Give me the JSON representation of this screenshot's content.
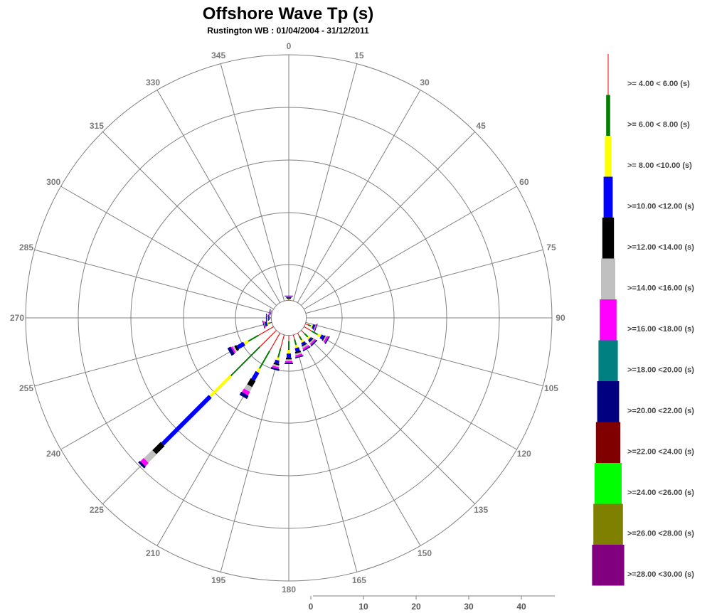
{
  "chart_data": {
    "type": "rose",
    "title": "Offshore Wave Tp (s)",
    "subtitle": "Rustington WB : 01/04/2004 - 31/12/2011",
    "direction_labels": [
      "0",
      "15",
      "30",
      "45",
      "60",
      "75",
      "90",
      "105",
      "120",
      "135",
      "150",
      "165",
      "180",
      "195",
      "210",
      "225",
      "240",
      "255",
      "270",
      "285",
      "300",
      "315",
      "330",
      "345"
    ],
    "radial_ticks": [
      "0",
      "10",
      "20",
      "30",
      "40"
    ],
    "radial_max": 45,
    "inner_radius_units": 3,
    "bins": [
      {
        "name": ">= 4.00 < 6.00 (s)",
        "color": "#ff0000"
      },
      {
        "name": ">= 6.00 < 8.00 (s)",
        "color": "#008000"
      },
      {
        "name": ">= 8.00 <10.00 (s)",
        "color": "#ffff00"
      },
      {
        "name": ">=10.00 <12.00 (s)",
        "color": "#0000ff"
      },
      {
        "name": ">=12.00 <14.00 (s)",
        "color": "#000000"
      },
      {
        "name": ">=14.00 <16.00 (s)",
        "color": "#c0c0c0"
      },
      {
        "name": ">=16.00 <18.00 (s)",
        "color": "#ff00ff"
      },
      {
        "name": ">=18.00 <20.00 (s)",
        "color": "#008080"
      },
      {
        "name": ">=20.00 <22.00 (s)",
        "color": "#000080"
      },
      {
        "name": ">=22.00 <24.00 (s)",
        "color": "#800000"
      },
      {
        "name": ">=24.00 <26.00 (s)",
        "color": "#00ff00"
      },
      {
        "name": ">=26.00 <28.00 (s)",
        "color": "#808000"
      },
      {
        "name": ">=28.00 <30.00 (s)",
        "color": "#800080"
      }
    ],
    "sectors": [
      {
        "dir": 0,
        "values": [
          0.05,
          0.1,
          0.1,
          0.2,
          0.1,
          0.1,
          0.05,
          0,
          0.1
        ]
      },
      {
        "dir": 110,
        "values": [
          0.5,
          0.5,
          0.3,
          0.3,
          0.1,
          0.1,
          0.1,
          0,
          0.1
        ]
      },
      {
        "dir": 120,
        "values": [
          1.5,
          1.2,
          0.6,
          0.5,
          0.2,
          0.2,
          0.3,
          0,
          0.2
        ]
      },
      {
        "dir": 135,
        "values": [
          0.8,
          0.8,
          0.4,
          0.3,
          0.2,
          0.2,
          0.3,
          0,
          0.2
        ]
      },
      {
        "dir": 150,
        "values": [
          0.6,
          0.8,
          0.4,
          0.4,
          0.2,
          0.3,
          0.3,
          0,
          0.2
        ]
      },
      {
        "dir": 165,
        "values": [
          0.8,
          1.0,
          0.5,
          0.6,
          0.3,
          0.3,
          0.3,
          0,
          0.2
        ]
      },
      {
        "dir": 180,
        "values": [
          1.0,
          1.5,
          0.6,
          0.7,
          0.3,
          0.3,
          0.3,
          0,
          0.2
        ]
      },
      {
        "dir": 195,
        "values": [
          2.5,
          1.5,
          0.5,
          0.5,
          0.3,
          0.3,
          0.3,
          0,
          0.3
        ]
      },
      {
        "dir": 210,
        "values": [
          3.5,
          3.5,
          0.7,
          1.5,
          1.2,
          0.9,
          0.7,
          0,
          0.6
        ]
      },
      {
        "dir": 225,
        "values": [
          4.0,
          7.0,
          5.0,
          11.5,
          2.0,
          2.0,
          0.8,
          0,
          0.4
        ]
      },
      {
        "dir": 240,
        "values": [
          3.0,
          2.0,
          0.8,
          1.3,
          0.4,
          0.3,
          0.3,
          0,
          0.6
        ]
      },
      {
        "dir": 255,
        "values": [
          0.3,
          0.3,
          0.2,
          0.3,
          0.1,
          0.1,
          0.1,
          0,
          0.1
        ]
      },
      {
        "dir": 270,
        "values": [
          0.1,
          0.1,
          0.1,
          0.1,
          0.1,
          0.2,
          0.1,
          0,
          0.1
        ]
      },
      {
        "dir": 285,
        "values": [
          0.05,
          0.05,
          0.05,
          0.05,
          0.05,
          0.1,
          0.1,
          0,
          0.05
        ]
      }
    ]
  }
}
